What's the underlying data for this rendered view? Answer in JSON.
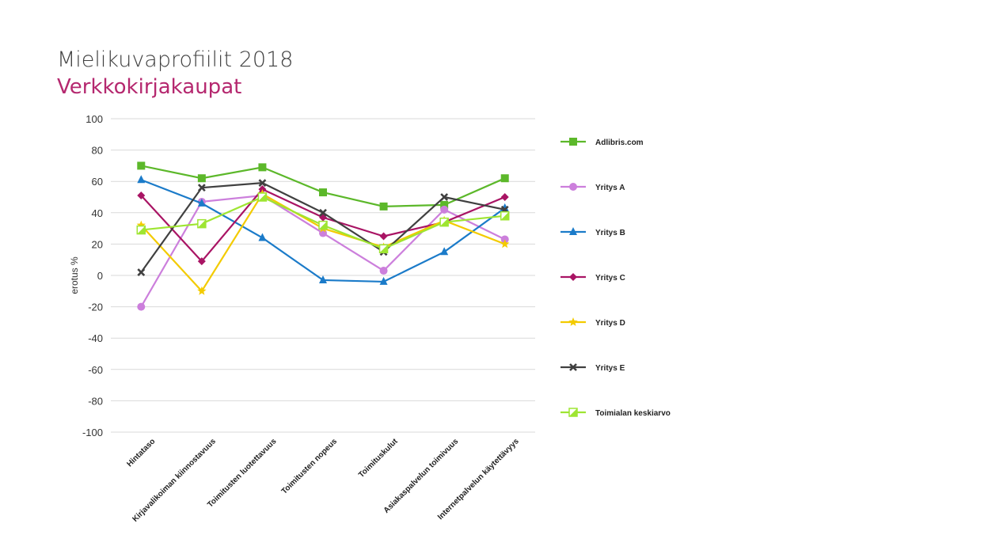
{
  "header": {
    "title": "Mielikuvaprofiilit 2018",
    "subtitle": "Verkkokirjakaupat"
  },
  "chart_data": {
    "type": "line",
    "title": "Mielikuvaprofiilit 2018",
    "subtitle": "Verkkokirjakaupat",
    "xlabel": "",
    "ylabel": "erotus %",
    "ylim": [
      -100,
      100
    ],
    "yticks": [
      100,
      80,
      60,
      40,
      20,
      0,
      -20,
      -40,
      -60,
      -80,
      -100
    ],
    "grid": true,
    "legend_position": "right",
    "categories": [
      "Hintataso",
      "Kirjavalikoiman kiinnostavuus",
      "Toimitusten luotettavuus",
      "Toimitusten nopeus",
      "Toimituskulut",
      "Asiakaspalvelun toimivuus",
      "Internetpalvelun käytettävyys"
    ],
    "series": [
      {
        "name": "Adlibris.com",
        "color": "#5cb82a",
        "marker": "square",
        "values": [
          70,
          62,
          69,
          53,
          44,
          45,
          62
        ]
      },
      {
        "name": "Yritys A",
        "color": "#cc7fdc",
        "marker": "circle",
        "values": [
          -20,
          47,
          51,
          27,
          3,
          42,
          23
        ]
      },
      {
        "name": "Yritys B",
        "color": "#1b7bc9",
        "marker": "triangle",
        "values": [
          61,
          46,
          24,
          -3,
          -4,
          15,
          43
        ]
      },
      {
        "name": "Yritys C",
        "color": "#a91464",
        "marker": "diamond",
        "values": [
          51,
          9,
          55,
          37,
          25,
          34,
          50
        ]
      },
      {
        "name": "Yritys D",
        "color": "#f3cb00",
        "marker": "star",
        "values": [
          32,
          -10,
          52,
          30,
          18,
          35,
          20
        ]
      },
      {
        "name": "Yritys E",
        "color": "#404040",
        "marker": "x",
        "values": [
          2,
          56,
          59,
          40,
          15,
          50,
          42
        ]
      },
      {
        "name": "Toimialan keskiarvo",
        "color": "#9ee532",
        "marker": "halfsquare",
        "values": [
          29,
          33,
          50,
          32,
          17,
          34,
          38
        ]
      }
    ]
  }
}
